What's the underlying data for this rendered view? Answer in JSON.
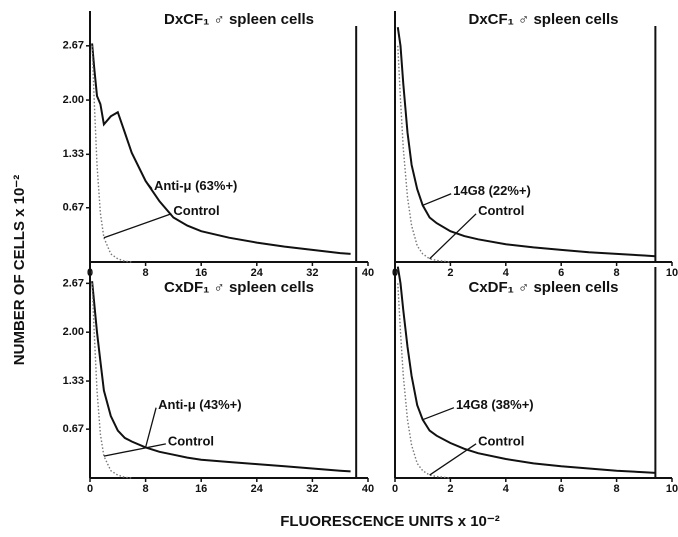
{
  "figure": {
    "xlabel": "FLUORESCENCE UNITS x 10⁻²",
    "ylabel": "NUMBER OF CELLS x 10⁻²"
  },
  "chart_data": [
    {
      "type": "line",
      "title": "DxCF₁ ♂ spleen cells",
      "x": [
        0.3,
        0.6,
        1,
        1.5,
        2,
        3,
        4,
        5,
        6,
        8,
        10,
        12,
        14,
        16,
        20,
        24,
        28,
        32,
        36,
        37.5
      ],
      "xlim": [
        0,
        40
      ],
      "xticks": [
        0,
        8,
        16,
        24,
        32,
        40
      ],
      "ylim": [
        0,
        3.1
      ],
      "yticks": [
        0.67,
        1.33,
        {
          "value": 2,
          "label": "2.00"
        },
        2.67
      ],
      "marker_x": 38.3,
      "series": [
        {
          "name": "Anti-μ (63%+)",
          "color": "#111111",
          "style": "solid",
          "values": [
            2.7,
            2.4,
            2.05,
            1.95,
            1.7,
            1.8,
            1.85,
            1.6,
            1.35,
            1.0,
            0.75,
            0.55,
            0.45,
            0.38,
            0.3,
            0.24,
            0.19,
            0.15,
            0.11,
            0.1
          ]
        },
        {
          "name": "Control",
          "color": "#777777",
          "style": "dotted",
          "values": [
            2.67,
            2.0,
            1.2,
            0.6,
            0.3,
            0.1,
            0.04,
            0.01,
            0,
            null,
            null,
            null,
            null,
            null,
            null,
            null,
            null,
            null,
            null,
            null
          ]
        }
      ]
    },
    {
      "type": "line",
      "title": "DxCF₁ ♂ spleen cells",
      "x": [
        0.1,
        0.2,
        0.3,
        0.45,
        0.6,
        0.8,
        1,
        1.25,
        1.5,
        2,
        2.5,
        3,
        4,
        5,
        6,
        7,
        8,
        9,
        9.4
      ],
      "xlim": [
        0,
        10
      ],
      "xticks": [
        0,
        2,
        4,
        6,
        8,
        10
      ],
      "ylim": [
        0,
        3.1
      ],
      "marker_x": 9.4,
      "series": [
        {
          "name": "14G8 (22%+)",
          "color": "#111111",
          "style": "solid",
          "values": [
            2.9,
            2.67,
            2.2,
            1.6,
            1.2,
            0.9,
            0.7,
            0.55,
            0.48,
            0.38,
            0.32,
            0.28,
            0.22,
            0.18,
            0.15,
            0.12,
            0.1,
            0.08,
            0.07
          ]
        },
        {
          "name": "Control",
          "color": "#777777",
          "style": "dotted",
          "values": [
            2.67,
            2.0,
            1.4,
            0.8,
            0.45,
            0.2,
            0.1,
            0.04,
            0.02,
            0,
            null,
            null,
            null,
            null,
            null,
            null,
            null,
            null,
            null
          ]
        }
      ]
    },
    {
      "type": "line",
      "title": "CxDF₁ ♂ spleen cells",
      "x": [
        0.3,
        0.6,
        1,
        1.5,
        2,
        3,
        4,
        5,
        6,
        8,
        10,
        12,
        14,
        16,
        20,
        24,
        28,
        32,
        36,
        37.5
      ],
      "xlim": [
        0,
        40
      ],
      "xticks": [
        0,
        8,
        16,
        24,
        32,
        40
      ],
      "ylim": [
        0,
        3.1
      ],
      "yticks": [
        0.67,
        1.33,
        {
          "value": 2,
          "label": "2.00"
        },
        2.67
      ],
      "marker_x": 38.3,
      "series": [
        {
          "name": "Anti-μ (43%+)",
          "color": "#111111",
          "style": "solid",
          "values": [
            2.7,
            2.4,
            2.0,
            1.6,
            1.2,
            0.85,
            0.65,
            0.55,
            0.5,
            0.42,
            0.36,
            0.32,
            0.28,
            0.25,
            0.22,
            0.19,
            0.16,
            0.13,
            0.1,
            0.09
          ]
        },
        {
          "name": "Control",
          "color": "#777777",
          "style": "dotted",
          "values": [
            2.67,
            2.0,
            1.2,
            0.6,
            0.3,
            0.1,
            0.04,
            0.01,
            0,
            null,
            null,
            null,
            null,
            null,
            null,
            null,
            null,
            null,
            null,
            null
          ]
        }
      ]
    },
    {
      "type": "line",
      "title": "CxDF₁ ♂ spleen cells",
      "x": [
        0.1,
        0.2,
        0.3,
        0.45,
        0.6,
        0.8,
        1,
        1.25,
        1.5,
        2,
        2.5,
        3,
        4,
        5,
        6,
        7,
        8,
        9,
        9.4
      ],
      "xlim": [
        0,
        10
      ],
      "xticks": [
        0,
        2,
        4,
        6,
        8,
        10
      ],
      "ylim": [
        0,
        3.1
      ],
      "marker_x": 9.4,
      "series": [
        {
          "name": "14G8 (38%+)",
          "color": "#111111",
          "style": "solid",
          "values": [
            2.9,
            2.67,
            2.3,
            1.8,
            1.4,
            1.0,
            0.8,
            0.65,
            0.58,
            0.48,
            0.4,
            0.34,
            0.26,
            0.2,
            0.16,
            0.13,
            0.1,
            0.08,
            0.07
          ]
        },
        {
          "name": "Control",
          "color": "#777777",
          "style": "dotted",
          "values": [
            2.67,
            2.0,
            1.4,
            0.8,
            0.45,
            0.2,
            0.1,
            0.04,
            0.02,
            0,
            null,
            null,
            null,
            null,
            null,
            null,
            null,
            null,
            null
          ]
        }
      ]
    }
  ]
}
